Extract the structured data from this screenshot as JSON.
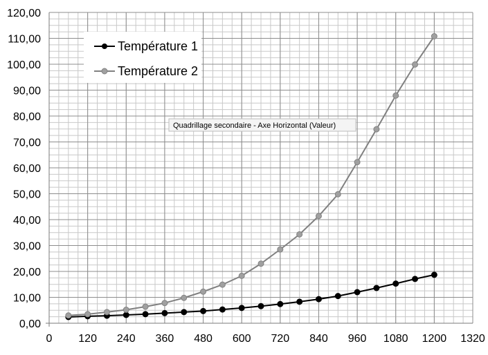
{
  "chart_data": {
    "type": "line",
    "title": "",
    "xlabel": "",
    "ylabel": "",
    "xlim": [
      0,
      1320
    ],
    "ylim": [
      0,
      120
    ],
    "x_ticks": [
      "0",
      "120",
      "240",
      "360",
      "480",
      "600",
      "720",
      "840",
      "960",
      "1080",
      "1200",
      "1320"
    ],
    "y_ticks": [
      "0,00",
      "10,00",
      "20,00",
      "30,00",
      "40,00",
      "50,00",
      "60,00",
      "70,00",
      "80,00",
      "90,00",
      "100,00",
      "110,00",
      "120,00"
    ],
    "x_tick_values": [
      0,
      120,
      240,
      360,
      480,
      600,
      720,
      840,
      960,
      1080,
      1200,
      1320
    ],
    "y_tick_values": [
      0,
      10,
      20,
      30,
      40,
      50,
      60,
      70,
      80,
      90,
      100,
      110,
      120
    ],
    "x_minor_step": 30,
    "y_minor_step": 2.5,
    "grid": true,
    "legend_position": "top-left",
    "x": [
      60,
      120,
      180,
      240,
      300,
      360,
      420,
      480,
      540,
      600,
      660,
      720,
      780,
      840,
      900,
      960,
      1020,
      1080,
      1140,
      1200
    ],
    "series": [
      {
        "name": "Température 1",
        "color": "#000000",
        "marker_color": "#000000",
        "values": [
          2.4,
          2.7,
          2.9,
          3.2,
          3.5,
          3.9,
          4.3,
          4.7,
          5.3,
          5.9,
          6.6,
          7.4,
          8.3,
          9.3,
          10.5,
          12.0,
          13.6,
          15.3,
          17.1,
          18.7
        ]
      },
      {
        "name": "Température 2",
        "color": "#808080",
        "marker_color": "#a0a0a0",
        "values": [
          3.0,
          3.5,
          4.3,
          5.2,
          6.4,
          7.8,
          9.8,
          12.2,
          14.9,
          18.3,
          23.0,
          28.5,
          34.3,
          41.4,
          49.8,
          62.2,
          74.9,
          87.9,
          99.9,
          110.8
        ]
      }
    ],
    "tooltip": "Quadrillage secondaire - Axe Horizontal (Valeur)"
  }
}
